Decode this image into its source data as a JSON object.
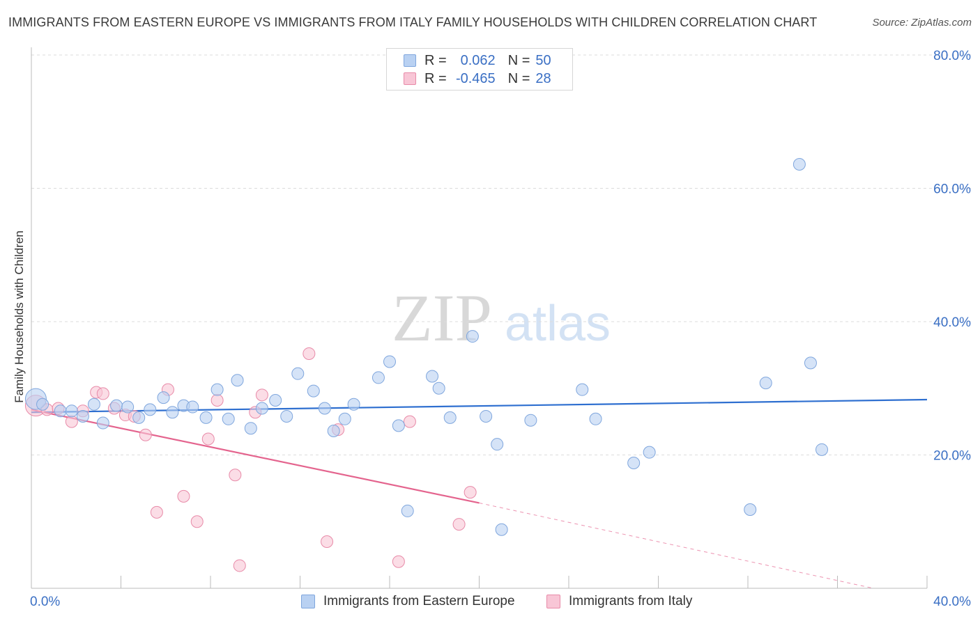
{
  "header": {
    "title": "IMMIGRANTS FROM EASTERN EUROPE VS IMMIGRANTS FROM ITALY FAMILY HOUSEHOLDS WITH CHILDREN CORRELATION CHART",
    "source": "Source: ZipAtlas.com"
  },
  "watermark": {
    "zip": "ZIP",
    "atlas": "atlas"
  },
  "legend": {
    "rows": [
      {
        "r_label": "R =",
        "r_value": "0.062",
        "n_label": "N =",
        "n_value": "50"
      },
      {
        "r_label": "R =",
        "r_value": "-0.465",
        "n_label": "N =",
        "n_value": "28"
      }
    ]
  },
  "colors": {
    "blue_fill": "#b9d1f2",
    "blue_stroke": "#7fa6dd",
    "blue_line": "#2e6fd0",
    "pink_fill": "#f8c6d6",
    "pink_stroke": "#e88aa8",
    "pink_line": "#e4648e",
    "grid": "#dcdcdc",
    "tick_text": "#3a6fc4"
  },
  "chart_data": {
    "type": "scatter",
    "title": "IMMIGRANTS FROM EASTERN EUROPE VS IMMIGRANTS FROM ITALY FAMILY HOUSEHOLDS WITH CHILDREN CORRELATION CHART",
    "xlabel": "",
    "ylabel": "Family Households with Children",
    "xlim": [
      0,
      40
    ],
    "ylim": [
      0,
      80
    ],
    "x_tick_labels": [
      "0.0%",
      "40.0%"
    ],
    "y_ticks": [
      20,
      40,
      60,
      80
    ],
    "y_tick_labels": [
      "20.0%",
      "40.0%",
      "60.0%",
      "80.0%"
    ],
    "grid": true,
    "legend_position": "top-center",
    "series": [
      {
        "name": "Immigrants from Eastern Europe",
        "color": "#b9d1f2",
        "R": 0.062,
        "N": 50,
        "trend": {
          "x": [
            0,
            40
          ],
          "y": [
            26.4,
            28.3
          ]
        },
        "points": [
          {
            "x": 0.2,
            "y": 28.4,
            "big": true
          },
          {
            "x": 0.5,
            "y": 27.6
          },
          {
            "x": 1.3,
            "y": 26.6
          },
          {
            "x": 1.8,
            "y": 26.6
          },
          {
            "x": 2.3,
            "y": 25.8
          },
          {
            "x": 2.8,
            "y": 27.6
          },
          {
            "x": 3.2,
            "y": 24.8
          },
          {
            "x": 3.8,
            "y": 27.4
          },
          {
            "x": 4.3,
            "y": 27.2
          },
          {
            "x": 4.8,
            "y": 25.6
          },
          {
            "x": 5.3,
            "y": 26.8
          },
          {
            "x": 5.9,
            "y": 28.6
          },
          {
            "x": 6.3,
            "y": 26.4
          },
          {
            "x": 6.8,
            "y": 27.4
          },
          {
            "x": 7.2,
            "y": 27.2
          },
          {
            "x": 7.8,
            "y": 25.6
          },
          {
            "x": 8.3,
            "y": 29.8
          },
          {
            "x": 8.8,
            "y": 25.4
          },
          {
            "x": 9.2,
            "y": 31.2
          },
          {
            "x": 9.8,
            "y": 24.0
          },
          {
            "x": 10.3,
            "y": 27.0
          },
          {
            "x": 10.9,
            "y": 28.2
          },
          {
            "x": 11.4,
            "y": 25.8
          },
          {
            "x": 11.9,
            "y": 32.2
          },
          {
            "x": 12.6,
            "y": 29.6
          },
          {
            "x": 13.1,
            "y": 27.0
          },
          {
            "x": 13.5,
            "y": 23.6
          },
          {
            "x": 14.0,
            "y": 25.4
          },
          {
            "x": 14.4,
            "y": 27.6
          },
          {
            "x": 15.5,
            "y": 31.6
          },
          {
            "x": 16.0,
            "y": 34.0
          },
          {
            "x": 16.4,
            "y": 24.4
          },
          {
            "x": 16.8,
            "y": 11.6
          },
          {
            "x": 17.9,
            "y": 31.8
          },
          {
            "x": 18.2,
            "y": 30.0
          },
          {
            "x": 18.7,
            "y": 25.6
          },
          {
            "x": 19.7,
            "y": 37.8
          },
          {
            "x": 20.3,
            "y": 25.8
          },
          {
            "x": 20.8,
            "y": 21.6
          },
          {
            "x": 21.0,
            "y": 8.8
          },
          {
            "x": 22.3,
            "y": 25.2
          },
          {
            "x": 24.6,
            "y": 29.8
          },
          {
            "x": 25.2,
            "y": 25.4
          },
          {
            "x": 26.9,
            "y": 18.8
          },
          {
            "x": 27.6,
            "y": 20.4
          },
          {
            "x": 32.1,
            "y": 11.8
          },
          {
            "x": 32.8,
            "y": 30.8
          },
          {
            "x": 34.3,
            "y": 63.6
          },
          {
            "x": 34.8,
            "y": 33.8
          },
          {
            "x": 35.3,
            "y": 20.8
          }
        ]
      },
      {
        "name": "Immigrants from Italy",
        "color": "#f8c6d6",
        "R": -0.465,
        "N": 28,
        "trend": {
          "x": [
            0,
            20
          ],
          "y": [
            26.8,
            12.8
          ]
        },
        "trend_extension": {
          "x": [
            20,
            37.6
          ],
          "y": [
            12.8,
            0
          ]
        },
        "points": [
          {
            "x": 0.2,
            "y": 27.4,
            "big": true
          },
          {
            "x": 0.7,
            "y": 26.8
          },
          {
            "x": 1.2,
            "y": 27.0
          },
          {
            "x": 1.8,
            "y": 25.0
          },
          {
            "x": 2.3,
            "y": 26.6
          },
          {
            "x": 2.9,
            "y": 29.4
          },
          {
            "x": 3.2,
            "y": 29.2
          },
          {
            "x": 3.7,
            "y": 27.0
          },
          {
            "x": 4.2,
            "y": 26.0
          },
          {
            "x": 4.6,
            "y": 25.8
          },
          {
            "x": 5.1,
            "y": 23.0
          },
          {
            "x": 5.6,
            "y": 11.4
          },
          {
            "x": 6.1,
            "y": 29.8
          },
          {
            "x": 6.8,
            "y": 13.8
          },
          {
            "x": 7.4,
            "y": 10.0
          },
          {
            "x": 7.9,
            "y": 22.4
          },
          {
            "x": 8.3,
            "y": 28.2
          },
          {
            "x": 9.1,
            "y": 17.0
          },
          {
            "x": 9.3,
            "y": 3.4
          },
          {
            "x": 10.0,
            "y": 26.4
          },
          {
            "x": 10.3,
            "y": 29.0
          },
          {
            "x": 12.4,
            "y": 35.2
          },
          {
            "x": 13.2,
            "y": 7.0
          },
          {
            "x": 13.7,
            "y": 23.8
          },
          {
            "x": 16.4,
            "y": 4.0
          },
          {
            "x": 16.9,
            "y": 25.0
          },
          {
            "x": 19.1,
            "y": 9.6
          },
          {
            "x": 19.6,
            "y": 14.4
          }
        ]
      }
    ]
  }
}
